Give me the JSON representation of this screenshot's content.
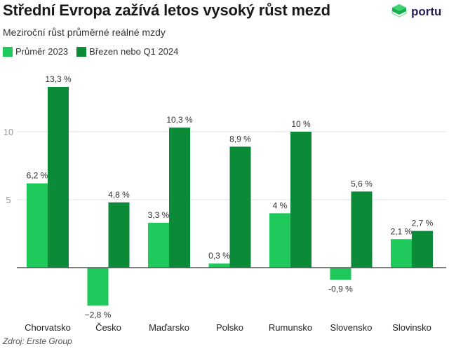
{
  "header": {
    "title": "Střední Evropa zažívá letos vysoký růst mezd",
    "subtitle": "Meziroční růst průměrné reálné mzdy",
    "logo_text": "portu"
  },
  "footer": {
    "source": "Zdroj: Erste Group"
  },
  "colors": {
    "series_1": "#1ec85a",
    "series_2": "#0b8a37",
    "grid": "#e3e3e3",
    "axis": "#555555"
  },
  "chart_data": {
    "type": "bar",
    "title": "Střední Evropa zažívá letos vysoký růst mezd",
    "subtitle": "Meziroční růst průměrné reálné mzdy",
    "categories": [
      "Chorvatsko",
      "Česko",
      "Maďarsko",
      "Polsko",
      "Rumunsko",
      "Slovensko",
      "Slovinsko"
    ],
    "series": [
      {
        "name": "Průměr 2023",
        "values": [
          6.2,
          -2.8,
          3.3,
          0.3,
          4,
          -0.9,
          2.1
        ],
        "labels": [
          "6,2 %",
          "−2,8 %",
          "3,3 %",
          "0,3 %",
          "4 %",
          "-0,9 %",
          "2,1 %"
        ]
      },
      {
        "name": "Březen nebo Q1 2024",
        "values": [
          13.3,
          4.8,
          10.3,
          8.9,
          10,
          5.6,
          2.7
        ],
        "labels": [
          "13,3 %",
          "4,8 %",
          "10,3 %",
          "8,9 %",
          "10 %",
          "5,6 %",
          "2,7 %"
        ]
      }
    ],
    "yticks": [
      5,
      10
    ],
    "ylim": [
      -3.5,
      14.5
    ],
    "grid": true,
    "legend": "top-left"
  }
}
